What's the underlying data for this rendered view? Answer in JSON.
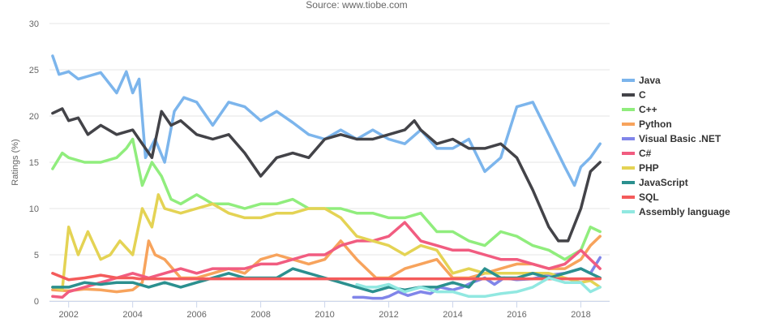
{
  "chart_data": {
    "type": "line",
    "subtitle": "Source: www.tiobe.com",
    "ylabel": "Ratings (%)",
    "xlabel": "",
    "xlim": [
      2001.4,
      2018.9
    ],
    "ylim": [
      0,
      30
    ],
    "x_ticks": [
      "2002",
      "2004",
      "2006",
      "2008",
      "2010",
      "2012",
      "2014",
      "2016",
      "2018"
    ],
    "y_ticks": [
      "0",
      "5",
      "10",
      "15",
      "20",
      "25",
      "30"
    ],
    "grid": "horizontal",
    "legend_position": "right",
    "series": [
      {
        "name": "Java",
        "color": "#7cb5ec",
        "x": [
          2001.5,
          2001.7,
          2002.0,
          2002.3,
          2002.6,
          2003.0,
          2003.5,
          2003.8,
          2004.0,
          2004.2,
          2004.4,
          2004.7,
          2005.0,
          2005.3,
          2005.6,
          2006.0,
          2006.5,
          2007.0,
          2007.5,
          2008.0,
          2008.5,
          2009.0,
          2009.5,
          2010.0,
          2010.5,
          2011.0,
          2011.5,
          2012.0,
          2012.5,
          2013.0,
          2013.5,
          2014.0,
          2014.5,
          2015.0,
          2015.5,
          2016.0,
          2016.5,
          2017.0,
          2017.5,
          2017.8,
          2018.0,
          2018.3,
          2018.6
        ],
        "y": [
          26.5,
          24.5,
          24.8,
          24.0,
          24.3,
          24.7,
          22.5,
          24.8,
          22.5,
          24.0,
          15.5,
          17.5,
          15.0,
          20.5,
          22.0,
          21.5,
          19.0,
          21.5,
          21.0,
          19.5,
          20.5,
          19.3,
          18.0,
          17.5,
          18.5,
          17.5,
          18.5,
          17.5,
          17.0,
          18.5,
          16.5,
          16.5,
          17.5,
          14.0,
          15.5,
          21.0,
          21.5,
          18.0,
          14.5,
          12.5,
          14.5,
          15.5,
          17.0
        ]
      },
      {
        "name": "C",
        "color": "#434348",
        "x": [
          2001.5,
          2001.8,
          2002.0,
          2002.3,
          2002.6,
          2003.0,
          2003.5,
          2004.0,
          2004.3,
          2004.6,
          2004.9,
          2005.2,
          2005.5,
          2006.0,
          2006.5,
          2007.0,
          2007.5,
          2008.0,
          2008.5,
          2009.0,
          2009.5,
          2010.0,
          2010.5,
          2011.0,
          2011.5,
          2012.0,
          2012.5,
          2012.8,
          2013.0,
          2013.5,
          2014.0,
          2014.5,
          2015.0,
          2015.5,
          2016.0,
          2016.5,
          2017.0,
          2017.3,
          2017.6,
          2018.0,
          2018.3,
          2018.6
        ],
        "y": [
          20.3,
          20.8,
          19.5,
          19.8,
          18.0,
          19.0,
          18.0,
          18.5,
          17.0,
          15.5,
          20.5,
          19.0,
          19.5,
          18.0,
          17.5,
          18.0,
          16.0,
          13.5,
          15.5,
          16.0,
          15.5,
          17.5,
          18.0,
          17.5,
          17.5,
          18.0,
          18.5,
          19.5,
          18.5,
          17.0,
          17.5,
          16.5,
          16.5,
          17.0,
          15.5,
          12.0,
          8.0,
          6.5,
          6.5,
          10.0,
          14.0,
          15.0
        ]
      },
      {
        "name": "C++",
        "color": "#90ed7d",
        "x": [
          2001.5,
          2001.8,
          2002.0,
          2002.5,
          2003.0,
          2003.5,
          2003.8,
          2004.0,
          2004.3,
          2004.6,
          2004.9,
          2005.2,
          2005.5,
          2006.0,
          2006.5,
          2007.0,
          2007.5,
          2008.0,
          2008.5,
          2009.0,
          2009.5,
          2010.0,
          2010.5,
          2011.0,
          2011.5,
          2012.0,
          2012.5,
          2013.0,
          2013.5,
          2014.0,
          2014.5,
          2015.0,
          2015.5,
          2016.0,
          2016.5,
          2017.0,
          2017.5,
          2018.0,
          2018.3,
          2018.6
        ],
        "y": [
          14.3,
          16.0,
          15.5,
          15.0,
          15.0,
          15.5,
          16.5,
          17.5,
          12.5,
          15.0,
          13.5,
          11.0,
          10.5,
          11.5,
          10.5,
          10.5,
          10.0,
          10.5,
          10.5,
          11.0,
          10.0,
          10.0,
          10.0,
          9.5,
          9.5,
          9.0,
          9.0,
          9.5,
          7.5,
          7.5,
          6.5,
          6.0,
          7.5,
          7.0,
          6.0,
          5.5,
          4.5,
          5.5,
          8.0,
          7.5
        ]
      },
      {
        "name": "Python",
        "color": "#f7a35c",
        "x": [
          2001.5,
          2002.0,
          2002.5,
          2003.0,
          2003.5,
          2004.0,
          2004.3,
          2004.5,
          2004.7,
          2005.0,
          2005.5,
          2006.0,
          2006.5,
          2007.0,
          2007.5,
          2008.0,
          2008.5,
          2009.0,
          2009.5,
          2010.0,
          2010.5,
          2011.0,
          2011.3,
          2011.6,
          2012.0,
          2012.5,
          2013.0,
          2013.5,
          2014.0,
          2014.5,
          2015.0,
          2015.5,
          2016.0,
          2016.5,
          2017.0,
          2017.5,
          2018.0,
          2018.3,
          2018.6
        ],
        "y": [
          1.2,
          1.1,
          1.3,
          1.2,
          1.0,
          1.2,
          2.0,
          6.5,
          5.0,
          4.5,
          2.5,
          2.5,
          3.0,
          3.5,
          3.0,
          4.5,
          5.0,
          4.5,
          4.0,
          4.5,
          6.5,
          4.5,
          3.5,
          2.5,
          2.5,
          3.5,
          4.0,
          4.5,
          2.5,
          2.5,
          3.0,
          3.5,
          4.0,
          4.0,
          3.5,
          3.5,
          4.5,
          6.0,
          7.0
        ]
      },
      {
        "name": "Visual Basic .NET",
        "color": "#8085e9",
        "x": [
          2010.9,
          2011.2,
          2011.5,
          2011.8,
          2012.0,
          2012.3,
          2012.6,
          2013.0,
          2013.3,
          2013.6,
          2014.0,
          2014.3,
          2014.6,
          2015.0,
          2015.3,
          2015.6,
          2016.0,
          2016.5,
          2017.0,
          2017.5,
          2018.0,
          2018.3,
          2018.6
        ],
        "y": [
          0.4,
          0.4,
          0.3,
          0.3,
          0.5,
          1.0,
          0.6,
          1.0,
          0.8,
          1.5,
          1.2,
          1.5,
          2.0,
          2.5,
          1.8,
          2.5,
          2.3,
          2.4,
          2.8,
          3.0,
          3.5,
          3.0,
          4.7
        ]
      },
      {
        "name": "C#",
        "color": "#f15c80",
        "x": [
          2001.5,
          2001.8,
          2002.0,
          2002.5,
          2003.0,
          2003.5,
          2004.0,
          2004.5,
          2005.0,
          2005.5,
          2006.0,
          2006.5,
          2007.0,
          2007.5,
          2008.0,
          2008.5,
          2009.0,
          2009.5,
          2010.0,
          2010.5,
          2011.0,
          2011.5,
          2012.0,
          2012.5,
          2013.0,
          2013.5,
          2014.0,
          2014.5,
          2015.0,
          2015.5,
          2016.0,
          2016.5,
          2017.0,
          2017.5,
          2018.0,
          2018.3,
          2018.6
        ],
        "y": [
          0.5,
          0.4,
          1.0,
          1.5,
          2.0,
          2.5,
          3.0,
          2.5,
          3.0,
          3.5,
          3.0,
          3.5,
          3.5,
          3.5,
          4.0,
          4.0,
          4.5,
          5.0,
          5.0,
          6.0,
          6.5,
          6.5,
          7.0,
          8.5,
          6.5,
          6.0,
          5.5,
          5.5,
          5.0,
          4.5,
          4.5,
          4.0,
          3.5,
          4.0,
          5.5,
          4.5,
          3.5
        ]
      },
      {
        "name": "PHP",
        "color": "#e4d354",
        "x": [
          2001.5,
          2001.8,
          2002.0,
          2002.3,
          2002.6,
          2003.0,
          2003.3,
          2003.6,
          2004.0,
          2004.3,
          2004.6,
          2004.8,
          2005.0,
          2005.5,
          2006.0,
          2006.5,
          2007.0,
          2007.5,
          2008.0,
          2008.5,
          2009.0,
          2009.5,
          2010.0,
          2010.5,
          2011.0,
          2011.5,
          2012.0,
          2012.5,
          2013.0,
          2013.5,
          2014.0,
          2014.5,
          2015.0,
          2015.5,
          2016.0,
          2016.5,
          2017.0,
          2017.5,
          2018.0,
          2018.3,
          2018.6
        ],
        "y": [
          1.5,
          1.2,
          8.0,
          5.0,
          7.5,
          4.5,
          5.0,
          6.5,
          5.0,
          10.0,
          8.0,
          11.5,
          10.0,
          9.5,
          10.0,
          10.5,
          9.5,
          9.0,
          9.0,
          9.5,
          9.5,
          10.0,
          10.0,
          9.0,
          7.0,
          6.5,
          6.0,
          5.0,
          6.0,
          5.5,
          3.0,
          3.5,
          3.0,
          3.0,
          3.0,
          3.0,
          3.0,
          2.5,
          2.0,
          2.2,
          1.5
        ]
      },
      {
        "name": "JavaScript",
        "color": "#2b908f",
        "x": [
          2001.5,
          2002.0,
          2002.5,
          2003.0,
          2003.5,
          2004.0,
          2004.5,
          2005.0,
          2005.5,
          2006.0,
          2006.5,
          2007.0,
          2007.5,
          2008.0,
          2008.5,
          2009.0,
          2009.5,
          2010.0,
          2010.5,
          2011.0,
          2011.5,
          2012.0,
          2012.5,
          2013.0,
          2013.5,
          2014.0,
          2014.5,
          2015.0,
          2015.5,
          2016.0,
          2016.5,
          2017.0,
          2017.5,
          2018.0,
          2018.3,
          2018.6
        ],
        "y": [
          1.5,
          1.5,
          2.0,
          1.8,
          2.0,
          2.0,
          1.5,
          2.0,
          1.5,
          2.0,
          2.5,
          3.0,
          2.5,
          2.5,
          2.5,
          3.5,
          3.0,
          2.5,
          2.0,
          1.5,
          1.0,
          1.5,
          1.2,
          1.5,
          1.5,
          2.0,
          1.5,
          3.5,
          2.5,
          2.5,
          3.0,
          2.5,
          3.0,
          3.5,
          3.0,
          2.5
        ]
      },
      {
        "name": "SQL",
        "color": "#f45b5b",
        "x": [
          2001.5,
          2002.0,
          2002.5,
          2003.0,
          2003.5,
          2004.0,
          2004.2,
          2018.6
        ],
        "y": [
          3.0,
          2.3,
          2.5,
          2.8,
          2.5,
          2.5,
          2.4,
          2.4
        ]
      },
      {
        "name": "Assembly language",
        "color": "#91e8e1",
        "x": [
          2011.0,
          2011.3,
          2011.6,
          2012.0,
          2012.5,
          2013.0,
          2013.5,
          2014.0,
          2014.5,
          2015.0,
          2015.5,
          2016.0,
          2016.5,
          2017.0,
          2017.5,
          2018.0,
          2018.3,
          2018.6
        ],
        "y": [
          1.8,
          1.5,
          1.5,
          1.8,
          1.0,
          1.5,
          1.0,
          1.0,
          0.5,
          0.5,
          0.8,
          1.0,
          1.5,
          2.5,
          2.0,
          2.0,
          1.0,
          1.5
        ]
      }
    ]
  }
}
